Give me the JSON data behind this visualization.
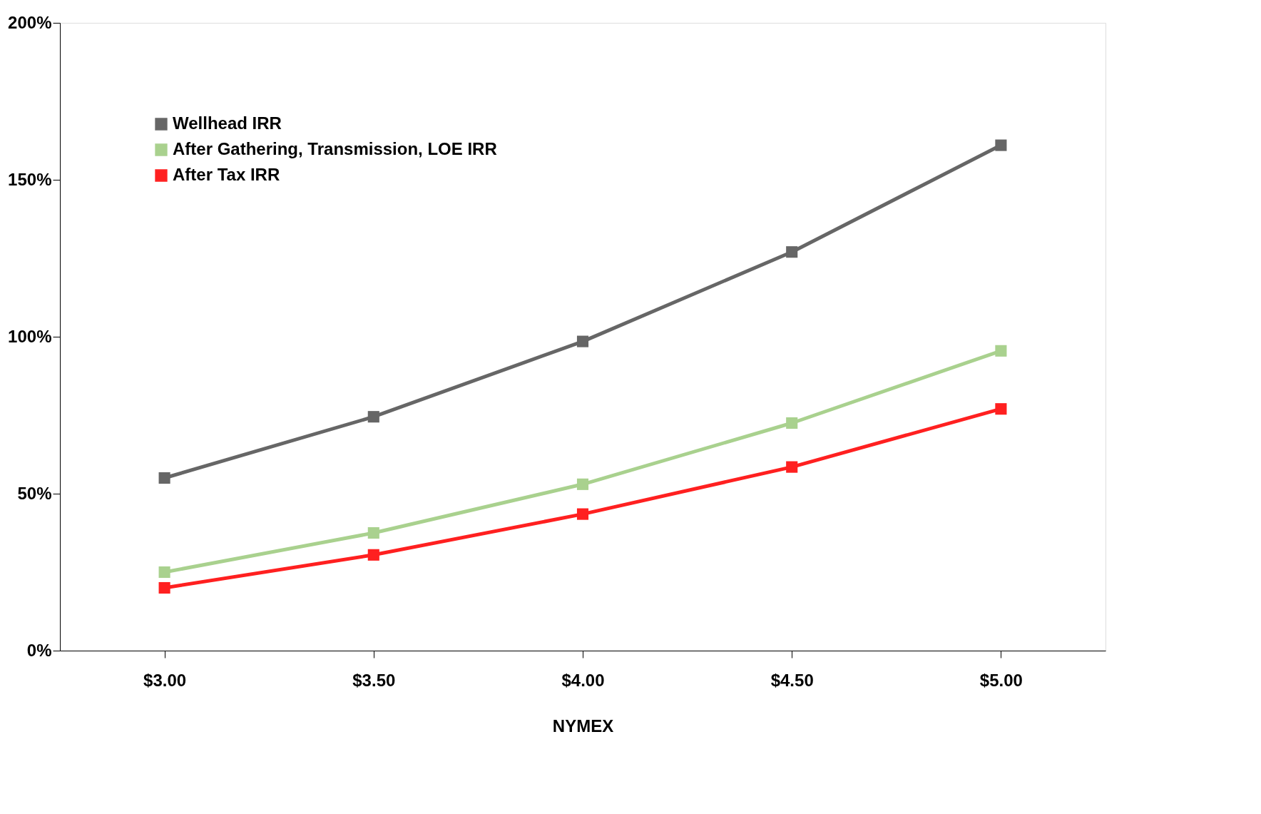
{
  "chart_data": {
    "type": "line",
    "xlabel": "NYMEX",
    "categories": [
      "$3.00",
      "$3.50",
      "$4.00",
      "$4.50",
      "$5.00"
    ],
    "series": [
      {
        "name": "Wellhead IRR",
        "color": "#666666",
        "values": [
          55,
          74.5,
          98.5,
          127,
          161
        ]
      },
      {
        "name": "After Gathering, Transmission, LOE IRR",
        "color": "#a9d18e",
        "values": [
          25,
          37.5,
          53,
          72.5,
          95.5
        ]
      },
      {
        "name": "After Tax IRR",
        "color": "#ff2020",
        "values": [
          20,
          30.5,
          43.5,
          58.5,
          77
        ]
      }
    ],
    "ylim": [
      0,
      200
    ],
    "yticks": [
      {
        "value": 0,
        "label": "0%"
      },
      {
        "value": 50,
        "label": "50%"
      },
      {
        "value": 100,
        "label": "100%"
      },
      {
        "value": 150,
        "label": "150%"
      },
      {
        "value": 200,
        "label": "200%"
      }
    ],
    "grid": false,
    "legend": "top left",
    "marker": "square",
    "line_style": "solid"
  }
}
